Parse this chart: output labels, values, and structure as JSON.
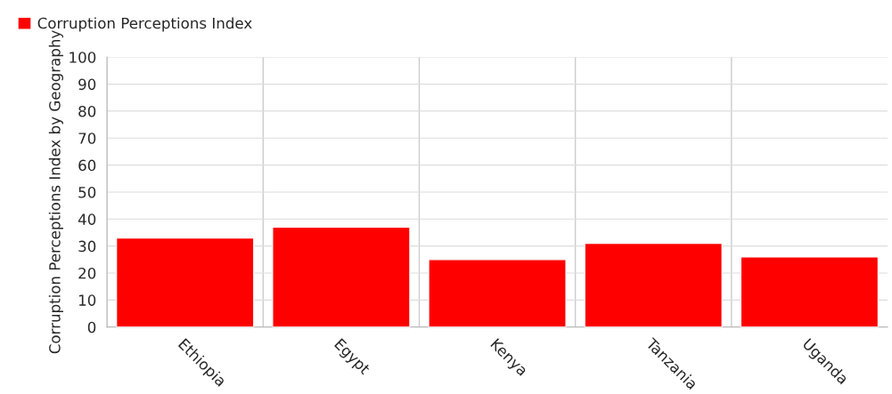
{
  "chart_data": {
    "type": "bar",
    "ylabel": "Corruption Perceptions Index by Geography",
    "categories": [
      "Ethiopia",
      "Egypt",
      "Kenya",
      "Tanzania",
      "Uganda"
    ],
    "series": [
      {
        "name": "Corruption Perceptions Index",
        "color": "#ff0000",
        "values": [
          33,
          37,
          25,
          31,
          26
        ]
      }
    ],
    "ylim": [
      0,
      100
    ],
    "yticks": [
      0,
      10,
      20,
      30,
      40,
      50,
      60,
      70,
      80,
      90,
      100
    ],
    "grid": true,
    "legend": "top left"
  }
}
